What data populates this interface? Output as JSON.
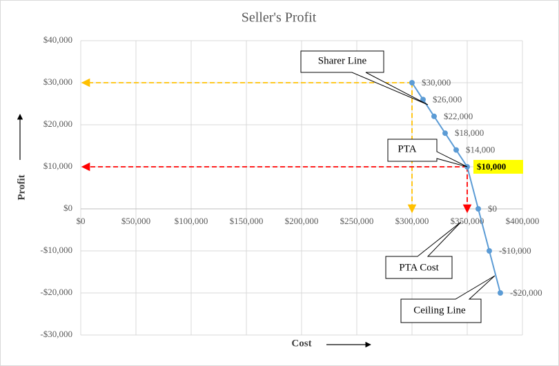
{
  "chart_data": {
    "type": "line",
    "title": "Seller's Profit",
    "x_label": "Cost",
    "y_label": "Profit",
    "x": [
      300000,
      310000,
      320000,
      330000,
      340000,
      350000,
      360000,
      370000,
      380000
    ],
    "series": [
      {
        "name": "Profit",
        "color": "#5b9bd5",
        "values": [
          30000,
          26000,
          22000,
          18000,
          14000,
          10000,
          0,
          -10000,
          -20000
        ],
        "value_labels": [
          "$30,000",
          "$26,000",
          "$22,000",
          "$18,000",
          "$14,000",
          "$10,000",
          "$0",
          "-$10,000",
          "-$20,000"
        ]
      }
    ],
    "xlim": [
      0,
      400000
    ],
    "xticks": [
      {
        "value": 0,
        "label": "$0"
      },
      {
        "value": 50000,
        "label": "$50,000"
      },
      {
        "value": 100000,
        "label": "$100,000"
      },
      {
        "value": 150000,
        "label": "$150,000"
      },
      {
        "value": 200000,
        "label": "$200,000"
      },
      {
        "value": 250000,
        "label": "$250,000"
      },
      {
        "value": 300000,
        "label": "$300,000"
      },
      {
        "value": 350000,
        "label": "$350,000"
      },
      {
        "value": 400000,
        "label": "$400,000"
      }
    ],
    "ylim": [
      -30000,
      40000
    ],
    "yticks": [
      {
        "value": -30000,
        "label": "-$30,000"
      },
      {
        "value": -20000,
        "label": "-$20,000"
      },
      {
        "value": -10000,
        "label": "-$10,000"
      },
      {
        "value": 0,
        "label": "$0"
      },
      {
        "value": 10000,
        "label": "$10,000"
      },
      {
        "value": 20000,
        "label": "$20,000"
      },
      {
        "value": 30000,
        "label": "$30,000"
      },
      {
        "value": 40000,
        "label": "$40,000"
      }
    ],
    "grid": true,
    "guides": [
      {
        "point": 0,
        "color": "#ffc000"
      },
      {
        "point": 5,
        "color": "#ff0000"
      }
    ],
    "highlight": {
      "point": 5,
      "color": "#ffff00"
    },
    "annotations": [
      {
        "text": "Sharer Line"
      },
      {
        "text": "PTA"
      },
      {
        "text": "PTA Cost"
      },
      {
        "text": "Ceiling Line"
      }
    ]
  }
}
